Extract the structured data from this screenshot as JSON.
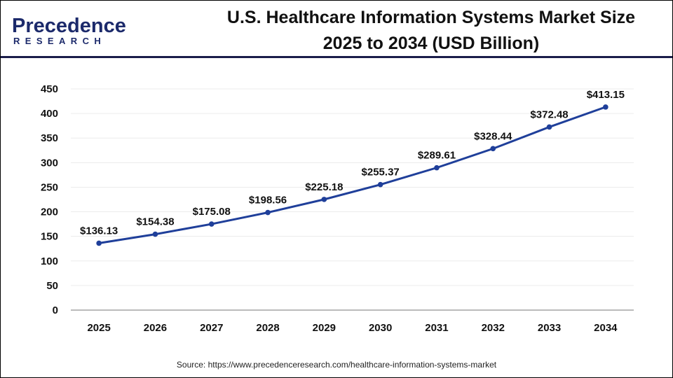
{
  "brand": {
    "line1": "Precedence",
    "line2": "RESEARCH"
  },
  "chart_data": {
    "type": "line",
    "title": "U.S. Healthcare Information Systems Market Size 2025 to 2034 (USD Billion)",
    "title_lines": [
      "U.S. Healthcare Information Systems Market Size",
      "2025 to 2034 (USD Billion)"
    ],
    "categories": [
      "2025",
      "2026",
      "2027",
      "2028",
      "2029",
      "2030",
      "2031",
      "2032",
      "2033",
      "2034"
    ],
    "values": [
      136.13,
      154.38,
      175.08,
      198.56,
      225.18,
      255.37,
      289.61,
      328.44,
      372.48,
      413.15
    ],
    "data_labels": [
      "$136.13",
      "$154.38",
      "$175.08",
      "$198.56",
      "$225.18",
      "$255.37",
      "$289.61",
      "$328.44",
      "$372.48",
      "$413.15"
    ],
    "yticks": [
      0,
      50,
      100,
      150,
      200,
      250,
      300,
      350,
      400,
      450
    ],
    "ylim": [
      0,
      450
    ],
    "grid": true,
    "line_color": "#1f3f9a",
    "xlabel": "",
    "ylabel": ""
  },
  "source": "Source: https://www.precedenceresearch.com/healthcare-information-systems-market"
}
